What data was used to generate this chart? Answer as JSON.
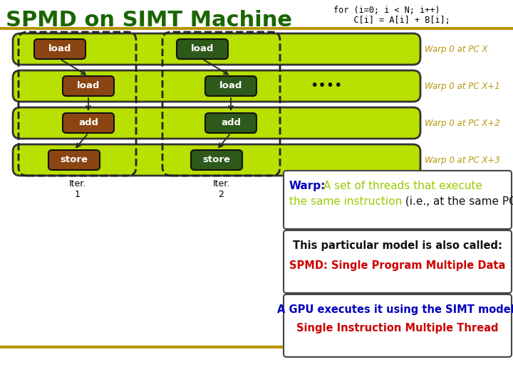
{
  "title": "SPMD on SIMT Machine",
  "title_color": "#1a6600",
  "title_fontsize": 22,
  "code_line1": "for (i=0; i < N; i++)",
  "code_line2": "    C[i] = A[i] + B[i];",
  "code_color": "#000000",
  "separator_color": "#b8960c",
  "bg_color": "#ffffff",
  "row_bg": "#b8e000",
  "row_border": "#333333",
  "dashed_border": "#333333",
  "warp_labels": [
    "Warp 0 at PC X",
    "Warp 0 at PC X+1",
    "Warp 0 at PC X+2",
    "Warp 0 at PC X+3"
  ],
  "warp_label_color": "#b8960c",
  "ops": [
    "load",
    "load",
    "add",
    "store"
  ],
  "box1_colors": [
    "#8B4513",
    "#8B4513",
    "#8B4513",
    "#8B4513"
  ],
  "box2_colors": [
    "#2d5a1b",
    "#2d5a1b",
    "#2d5a1b",
    "#2d5a1b"
  ],
  "op_text_color": "#ffffff",
  "dots_color": "#000000",
  "iter1_label": "Iter.\n1",
  "iter2_label": "Iter.\n2",
  "iter_color": "#000000",
  "warp_box_title": "Warp:",
  "warp_box_title_color": "#0000bb",
  "warp_box_text1": " A set of threads that execute",
  "warp_box_text1_color": "#99cc00",
  "warp_box_text2": "the same instruction",
  "warp_box_text2_color": "#99cc00",
  "warp_box_text3": " (i.e., at the same PC)",
  "warp_box_text3_color": "#111111",
  "model_text": "This particular model is also called:",
  "model_color": "#111111",
  "spmd_text": "SPMD: Single Program Multiple Data",
  "spmd_color": "#cc0000",
  "gpu_text1": "A GPU executes it using the SIMT model:",
  "gpu_text1_color": "#0000bb",
  "gpu_text2": "Single Instruction Multiple Thread",
  "gpu_text2_color": "#cc0000"
}
